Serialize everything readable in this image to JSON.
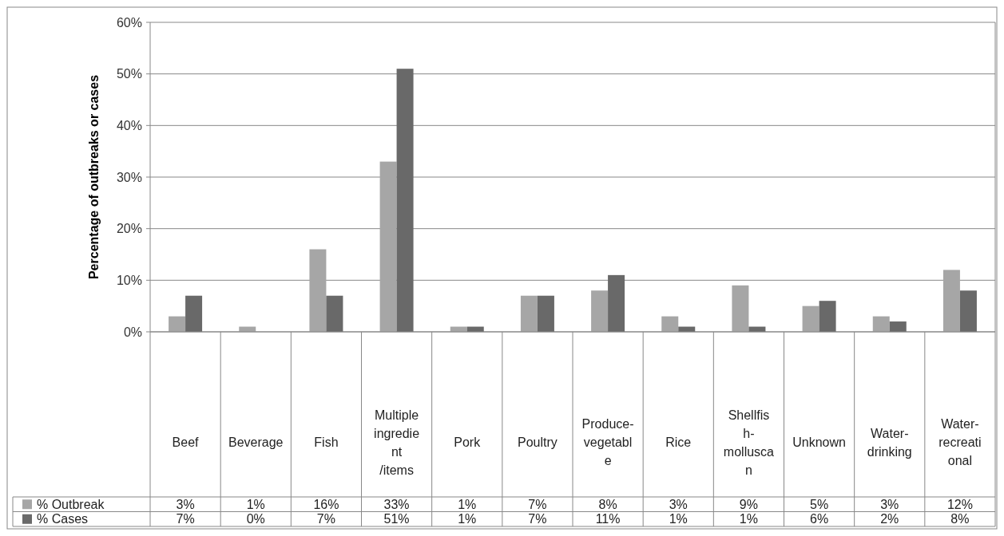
{
  "chart_data": {
    "type": "bar",
    "ylabel": "Percentage of outbreaks or cases",
    "categories": [
      "Beef",
      "Beverage",
      "Fish",
      "Multiple ingredient/items",
      "Pork",
      "Poultry",
      "Produce-vegetable",
      "Rice",
      "Shellfish-molluscan",
      "Unknown",
      "Water-drinking",
      "Water-recreational"
    ],
    "series": [
      {
        "name": "% Outbreak",
        "color": "#a6a6a6",
        "values": [
          3,
          1,
          16,
          33,
          1,
          7,
          8,
          3,
          9,
          5,
          3,
          12
        ],
        "value_labels": [
          "3%",
          "1%",
          "16%",
          "33%",
          "1%",
          "7%",
          "8%",
          "3%",
          "9%",
          "5%",
          "3%",
          "12%"
        ]
      },
      {
        "name": "% Cases",
        "color": "#696969",
        "values": [
          7,
          0,
          7,
          51,
          1,
          7,
          11,
          1,
          1,
          6,
          2,
          8
        ],
        "value_labels": [
          "7%",
          "0%",
          "7%",
          "51%",
          "1%",
          "7%",
          "11%",
          "1%",
          "1%",
          "6%",
          "2%",
          "8%"
        ]
      }
    ],
    "ylim": [
      0,
      60
    ],
    "yticks": [
      {
        "value": 0,
        "label": "0%"
      },
      {
        "value": 10,
        "label": "10%"
      },
      {
        "value": 20,
        "label": "20%"
      },
      {
        "value": 30,
        "label": "30%"
      },
      {
        "value": 40,
        "label": "40%"
      },
      {
        "value": 50,
        "label": "50%"
      },
      {
        "value": 60,
        "label": "60%"
      }
    ],
    "grid": "y",
    "legend": "bottom"
  }
}
